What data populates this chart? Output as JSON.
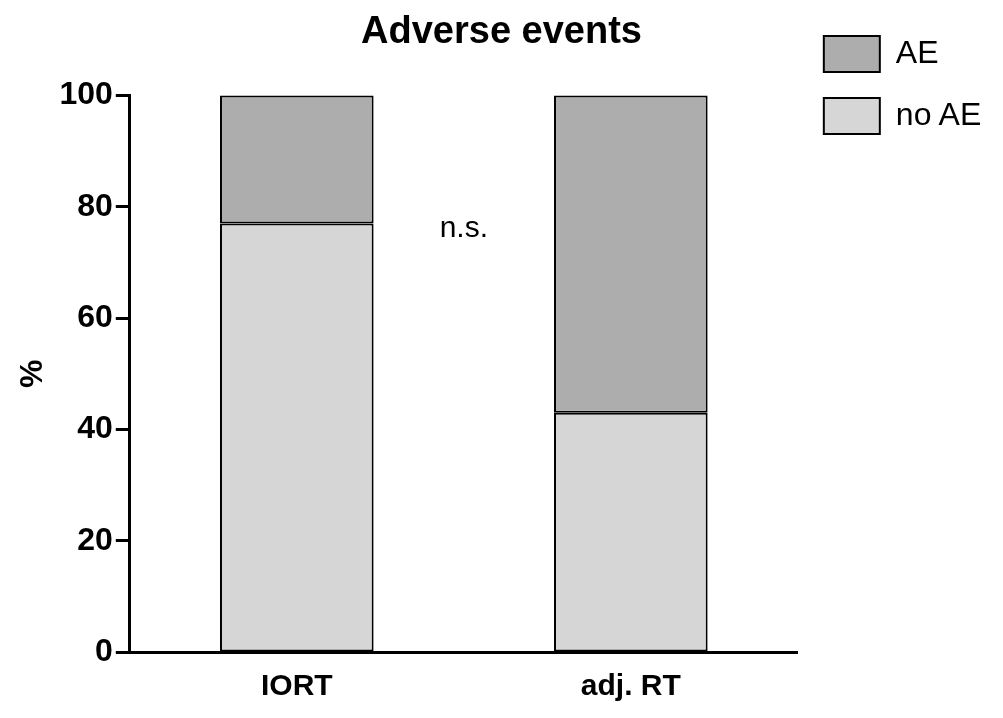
{
  "chart_data": {
    "type": "bar",
    "title": "Adverse events",
    "ylabel": "%",
    "categories": [
      "IORT",
      "adj. RT"
    ],
    "stacked": true,
    "series": [
      {
        "name": "no AE",
        "color": "#d6d6d6",
        "values": [
          77,
          43
        ]
      },
      {
        "name": "AE",
        "color": "#adadad",
        "values": [
          23,
          57
        ]
      }
    ],
    "ylim": [
      0,
      100
    ],
    "yticks": [
      0,
      20,
      40,
      60,
      80,
      100
    ],
    "grid": false,
    "legend": "right",
    "annotations": [
      "n.s."
    ]
  }
}
